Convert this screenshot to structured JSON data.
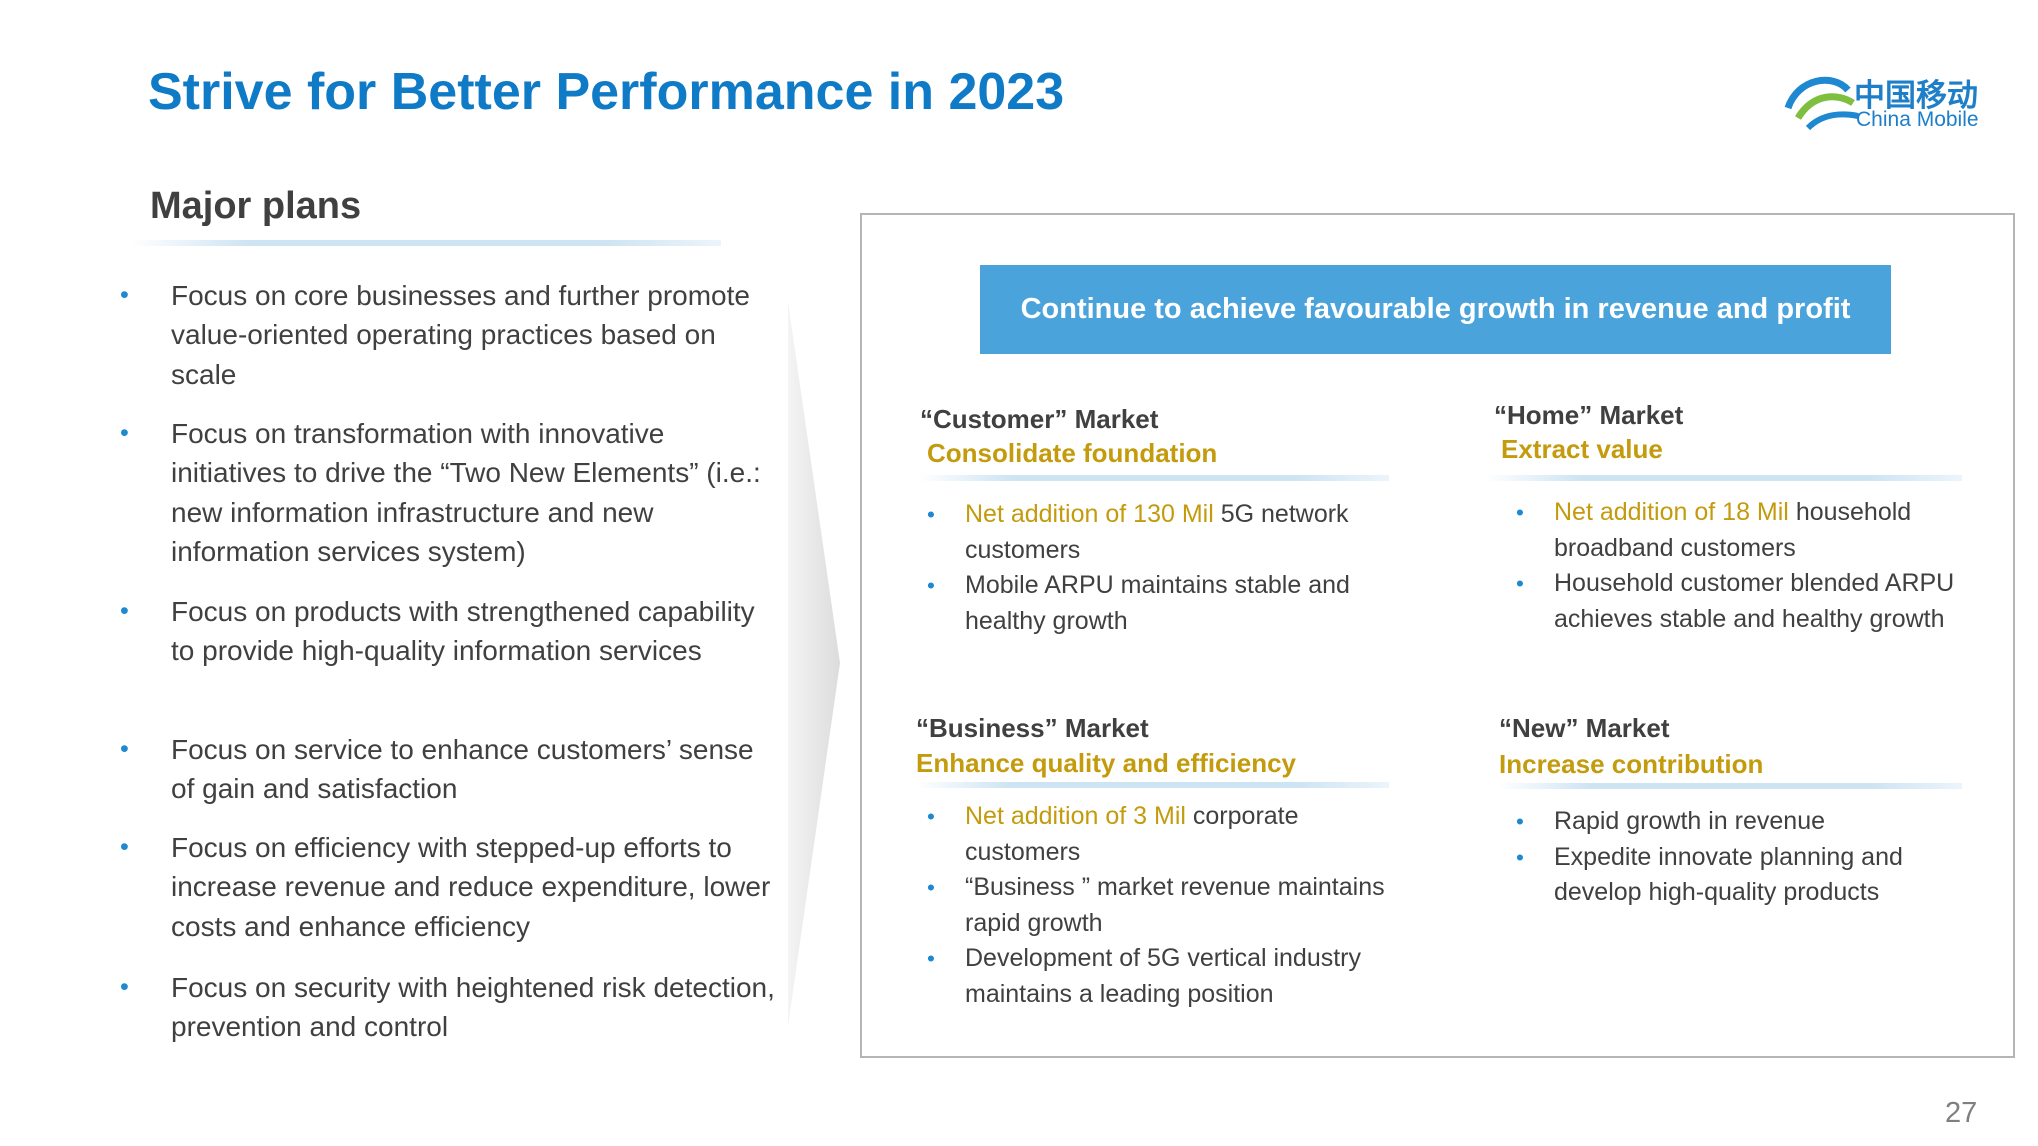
{
  "header": {
    "title": "Strive for Better Performance in 2023",
    "logo": {
      "cn": "中国移动",
      "en": "China Mobile"
    }
  },
  "left": {
    "heading": "Major plans",
    "bullets": [
      "Focus on core businesses and further promote value-oriented operating practices based on scale",
      "Focus on transformation with innovative initiatives to drive the “Two New Elements” (i.e.: new information infrastructure and new information services system)",
      "Focus on products with strengthened capability to provide high-quality information services",
      "Focus on service to enhance customers’ sense of gain and satisfaction",
      "Focus on efficiency with stepped-up efforts to increase revenue and reduce expenditure, lower costs and enhance efficiency",
      "Focus on security with heightened risk detection, prevention and control"
    ]
  },
  "right": {
    "banner": "Continue to achieve favourable growth in revenue and profit",
    "markets": [
      {
        "title": "“Customer” Market",
        "subtitle": "Consolidate  foundation",
        "bullets": [
          {
            "highlight": "Net addition of 130 Mil",
            "rest": "5G network customers"
          },
          {
            "text": "Mobile ARPU maintains stable and healthy growth"
          }
        ]
      },
      {
        "title": "“Home” Market",
        "subtitle": "Extract value",
        "bullets": [
          {
            "highlight": "Net addition of 18 Mil",
            "rest": "household broadband customers"
          },
          {
            "text": "Household customer blended ARPU achieves stable and healthy growth"
          }
        ]
      },
      {
        "title": "“Business” Market",
        "subtitle": "Enhance  quality and efficiency",
        "bullets": [
          {
            "highlight": "Net addition of 3 Mil",
            "rest": "corporate customers"
          },
          {
            "text": "“Business ” market revenue maintains rapid growth"
          },
          {
            "text": "Development of 5G vertical industry maintains a leading position"
          }
        ]
      },
      {
        "title": "“New” Market",
        "subtitle": "Increase contribution",
        "bullets": [
          {
            "text": "Rapid growth in revenue"
          },
          {
            "text": "Expedite innovate planning and develop high-quality products"
          }
        ]
      }
    ]
  },
  "footer": {
    "page": "27"
  }
}
